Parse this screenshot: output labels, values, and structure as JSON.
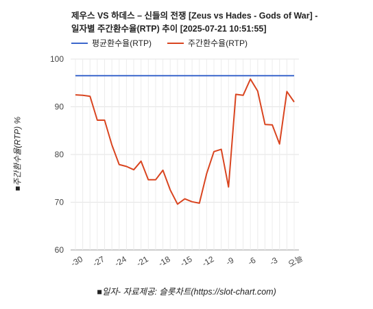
{
  "chart_data": {
    "type": "line",
    "title_line1": "제우스 VS 하데스 – 신들의 전쟁 [Zeus vs Hades - Gods of War] -",
    "title_line2": "일자별 주간환수율(RTP) 추이 [2025-07-21 10:51:55]",
    "ylabel": "■주간환수율(RTP) %",
    "xlabel": "■일자- 자료제공: 슬롯차트(https://slot-chart.com)",
    "ylim": [
      60,
      100
    ],
    "yticks": [
      "60",
      "70",
      "80",
      "90",
      "100"
    ],
    "xticks": [
      "-30",
      "-27",
      "-24",
      "-21",
      "-18",
      "-15",
      "-12",
      "-9",
      "-6",
      "-3",
      "오늘"
    ],
    "x": [
      -30,
      -29,
      -28,
      -27,
      -26,
      -25,
      -24,
      -23,
      -22,
      -21,
      -20,
      -19,
      -18,
      -17,
      -16,
      -15,
      -14,
      -13,
      -12,
      -11,
      -10,
      -9,
      -8,
      -7,
      -6,
      -5,
      -4,
      -3,
      -2,
      -1,
      0
    ],
    "series": [
      {
        "name": "평균환수율(RTP)",
        "color": "#3a66cc",
        "values": [
          96.5,
          96.5,
          96.5,
          96.5,
          96.5,
          96.5,
          96.5,
          96.5,
          96.5,
          96.5,
          96.5,
          96.5,
          96.5,
          96.5,
          96.5,
          96.5,
          96.5,
          96.5,
          96.5,
          96.5,
          96.5,
          96.5,
          96.5,
          96.5,
          96.5,
          96.5,
          96.5,
          96.5,
          96.5,
          96.5,
          96.5
        ]
      },
      {
        "name": "주간환수율(RTP)",
        "color": "#d9441f",
        "values": [
          92.5,
          92.4,
          92.2,
          87.2,
          87.2,
          82.0,
          77.9,
          77.5,
          76.8,
          78.6,
          74.7,
          74.7,
          76.7,
          72.6,
          69.6,
          70.7,
          70.1,
          69.8,
          76.0,
          80.6,
          81.1,
          73.2,
          92.6,
          92.4,
          95.8,
          93.3,
          86.3,
          86.2,
          82.2,
          93.2,
          91.0
        ]
      }
    ],
    "grid": true,
    "legend_position": "top-left"
  }
}
